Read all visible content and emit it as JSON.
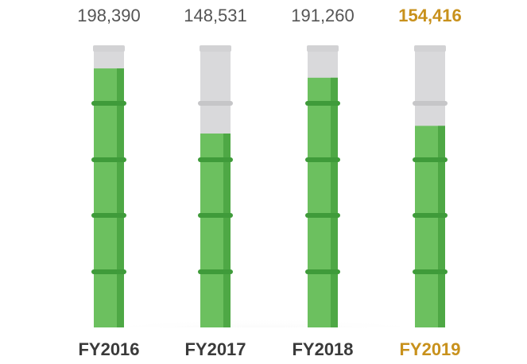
{
  "chart_data": {
    "type": "bamboo-bar",
    "categories": [
      "FY2016",
      "FY2017",
      "FY2018",
      "FY2019"
    ],
    "values": [
      198390,
      148531,
      191260,
      154416
    ],
    "value_labels": [
      "198,390",
      "148,531",
      "191,260",
      "154,416"
    ],
    "color": "#6cc05f",
    "label_colors": [
      "#555555",
      "#555555",
      "#555555",
      "#c8911c"
    ],
    "category_colors": [
      "#3a3a3a",
      "#3a3a3a",
      "#3a3a3a",
      "#c8911c"
    ]
  }
}
